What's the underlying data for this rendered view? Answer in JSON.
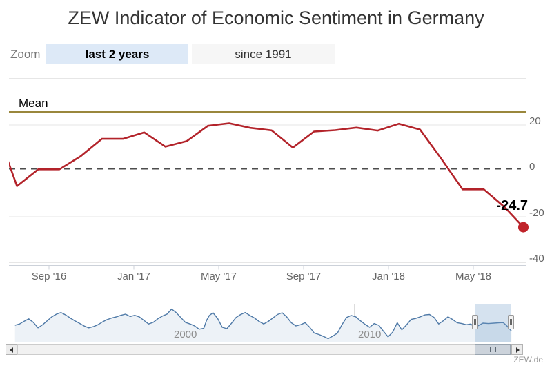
{
  "title": "ZEW Indicator of Economic Sentiment in Germany",
  "zoom_control": {
    "label": "Zoom",
    "buttons": [
      {
        "label": "last 2 years",
        "selected": true
      },
      {
        "label": "since 1991",
        "selected": false
      }
    ]
  },
  "credit": "ZEW.de",
  "chart_data": {
    "type": "line",
    "title": "ZEW Indicator of Economic Sentiment in Germany",
    "series_color": "#b3232a",
    "marker_color": "#c0232a",
    "months": [
      "Jun '16",
      "Jul '16",
      "Aug '16",
      "Sep '16",
      "Oct '16",
      "Nov '16",
      "Dec '16",
      "Jan '17",
      "Feb '17",
      "Mar '17",
      "Apr '17",
      "May '17",
      "Jun '17",
      "Jul '17",
      "Aug '17",
      "Sep '17",
      "Oct '17",
      "Nov '17",
      "Dec '17",
      "Jan '18",
      "Feb '18",
      "Mar '18",
      "Apr '18",
      "May '18",
      "Jun '18",
      "Jul '18"
    ],
    "values": [
      19.2,
      -6.8,
      0.5,
      0.5,
      6.2,
      13.8,
      13.8,
      16.6,
      10.4,
      12.8,
      19.5,
      20.6,
      18.6,
      17.5,
      10.0,
      17.0,
      17.6,
      18.7,
      17.4,
      20.4,
      17.8,
      5.1,
      -8.2,
      -8.2,
      -16.1,
      -24.7
    ],
    "last_point_label": "-24.7",
    "last_point_value": -24.7,
    "mean_line": {
      "label": "Mean",
      "value": 25,
      "color": "#9a873c"
    },
    "zero_line": {
      "value": 0,
      "style": "dashed",
      "color": "#4d4d4d"
    },
    "yaxis": {
      "side": "right",
      "tick_labels": [
        "20",
        "0",
        "-20",
        "-40"
      ],
      "tick_values": [
        20,
        0,
        -20,
        -40
      ],
      "range": [
        -41,
        40
      ],
      "gridlines": true
    },
    "xaxis": {
      "tick_labels": [
        "Sep '16",
        "Jan '17",
        "May '17",
        "Sep '17",
        "Jan '18",
        "May '18"
      ]
    },
    "legend": "none",
    "navigator": {
      "series_color": "#4e79a7",
      "area_fill": "#edf2f7",
      "selection_fill": "rgba(116,158,201,0.30)",
      "decade_labels": [
        {
          "label": "2000",
          "year": 2000
        },
        {
          "label": "2010",
          "year": 2010
        }
      ],
      "selected_range_years": [
        2016.55,
        2018.55
      ],
      "points": [
        [
          1991.6,
          5
        ],
        [
          1991.85,
          12
        ],
        [
          1992.1,
          26
        ],
        [
          1992.35,
          38
        ],
        [
          1992.6,
          20
        ],
        [
          1992.85,
          -8
        ],
        [
          1993.1,
          8
        ],
        [
          1993.35,
          28
        ],
        [
          1993.6,
          48
        ],
        [
          1993.85,
          62
        ],
        [
          1994.1,
          70
        ],
        [
          1994.35,
          58
        ],
        [
          1994.6,
          42
        ],
        [
          1994.85,
          28
        ],
        [
          1995.1,
          15
        ],
        [
          1995.35,
          2
        ],
        [
          1995.6,
          -8
        ],
        [
          1995.85,
          -2
        ],
        [
          1996.1,
          8
        ],
        [
          1996.35,
          22
        ],
        [
          1996.6,
          34
        ],
        [
          1996.85,
          42
        ],
        [
          1997.1,
          48
        ],
        [
          1997.35,
          56
        ],
        [
          1997.6,
          62
        ],
        [
          1997.85,
          50
        ],
        [
          1998.1,
          56
        ],
        [
          1998.35,
          48
        ],
        [
          1998.6,
          30
        ],
        [
          1998.85,
          12
        ],
        [
          1999.1,
          20
        ],
        [
          1999.35,
          38
        ],
        [
          1999.6,
          52
        ],
        [
          1999.85,
          62
        ],
        [
          2000.1,
          88
        ],
        [
          2000.35,
          70
        ],
        [
          2000.6,
          45
        ],
        [
          2000.85,
          20
        ],
        [
          2001.1,
          12
        ],
        [
          2001.35,
          2
        ],
        [
          2001.6,
          -15
        ],
        [
          2001.85,
          -10
        ],
        [
          2002,
          30
        ],
        [
          2002.15,
          55
        ],
        [
          2002.35,
          69
        ],
        [
          2002.6,
          40
        ],
        [
          2002.85,
          -5
        ],
        [
          2003.1,
          -12
        ],
        [
          2003.35,
          15
        ],
        [
          2003.6,
          45
        ],
        [
          2003.85,
          60
        ],
        [
          2004.1,
          70
        ],
        [
          2004.35,
          55
        ],
        [
          2004.6,
          42
        ],
        [
          2004.85,
          25
        ],
        [
          2005.1,
          12
        ],
        [
          2005.35,
          25
        ],
        [
          2005.6,
          42
        ],
        [
          2005.85,
          60
        ],
        [
          2006.1,
          69
        ],
        [
          2006.35,
          48
        ],
        [
          2006.6,
          18
        ],
        [
          2006.85,
          2
        ],
        [
          2007.1,
          8
        ],
        [
          2007.35,
          18
        ],
        [
          2007.6,
          -5
        ],
        [
          2007.85,
          -35
        ],
        [
          2008.1,
          -42
        ],
        [
          2008.35,
          -52
        ],
        [
          2008.6,
          -63
        ],
        [
          2008.85,
          -50
        ],
        [
          2009.1,
          -35
        ],
        [
          2009.35,
          8
        ],
        [
          2009.6,
          45
        ],
        [
          2009.85,
          55
        ],
        [
          2010.1,
          48
        ],
        [
          2010.35,
          28
        ],
        [
          2010.6,
          10
        ],
        [
          2010.85,
          -5
        ],
        [
          2011.1,
          14
        ],
        [
          2011.35,
          5
        ],
        [
          2011.6,
          -25
        ],
        [
          2011.85,
          -54
        ],
        [
          2012.1,
          -30
        ],
        [
          2012.35,
          18
        ],
        [
          2012.6,
          -18
        ],
        [
          2012.85,
          7
        ],
        [
          2013.1,
          35
        ],
        [
          2013.35,
          40
        ],
        [
          2013.6,
          48
        ],
        [
          2013.85,
          58
        ],
        [
          2014.1,
          60
        ],
        [
          2014.35,
          45
        ],
        [
          2014.6,
          12
        ],
        [
          2014.85,
          28
        ],
        [
          2015.1,
          48
        ],
        [
          2015.35,
          35
        ],
        [
          2015.6,
          18
        ],
        [
          2015.85,
          14
        ],
        [
          2016.1,
          8
        ],
        [
          2016.35,
          12
        ],
        [
          2016.55,
          -7
        ],
        [
          2016.8,
          6
        ],
        [
          2017,
          16
        ],
        [
          2017.3,
          14
        ],
        [
          2017.6,
          16
        ],
        [
          2017.9,
          18
        ],
        [
          2018.1,
          19
        ],
        [
          2018.3,
          2
        ],
        [
          2018.45,
          -14
        ],
        [
          2018.55,
          -24.7
        ]
      ]
    }
  }
}
